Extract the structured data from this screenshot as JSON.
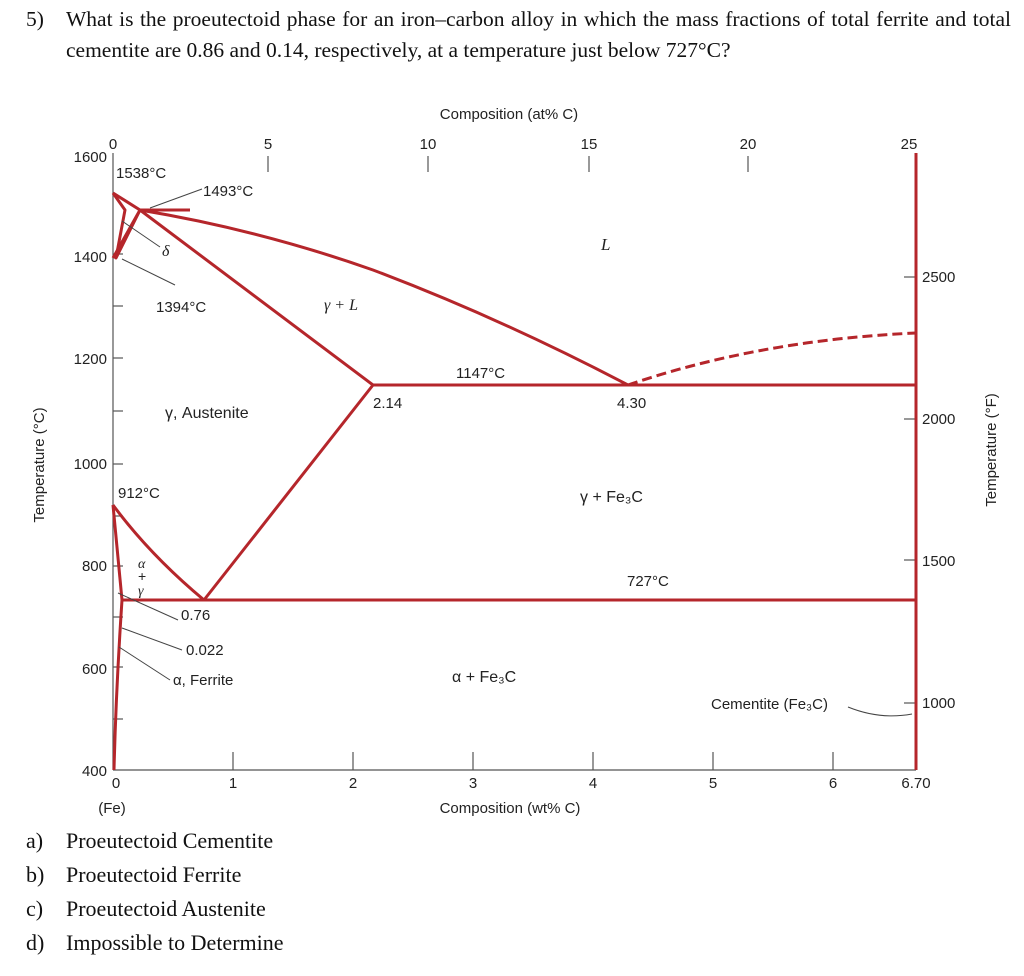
{
  "question": {
    "number": "5)",
    "text": "What is the proeutectoid phase for an iron–carbon alloy in which the mass fractions of total ferrite and total cementite are 0.86 and 0.14, respectively, at a temperature just below 727°C?"
  },
  "diagram": {
    "top_axis_label": "Composition (at% C)",
    "top_ticks": [
      "0",
      "5",
      "10",
      "15",
      "20",
      "25"
    ],
    "bottom_axis_label": "Composition (wt% C)",
    "bottom_ticks": [
      "0",
      "1",
      "2",
      "3",
      "4",
      "5",
      "6",
      "6.70"
    ],
    "bottom_origin_note": "(Fe)",
    "left_axis_label": "Temperature (°C)",
    "left_ticks": [
      "1600",
      "1400",
      "1200",
      "1000",
      "800",
      "600",
      "400"
    ],
    "right_axis_label": "Temperature (°F)",
    "right_ticks": [
      "2500",
      "2000",
      "1500",
      "1000"
    ],
    "labels": {
      "t1538": "1538°C",
      "t1493": "1493°C",
      "delta": "δ",
      "t1394": "1394°C",
      "gamma_liquid": "γ + L",
      "liquid": "L",
      "t1147": "1147°C",
      "c214": "2.14",
      "c430": "4.30",
      "austenite": "γ, Austenite",
      "t912": "912°C",
      "gamma_fe3c": "γ + Fe₃C",
      "alpha_sym": "α",
      "plus_sym": "+",
      "gamma_sym": "γ",
      "t727": "727°C",
      "c076": "0.76",
      "c0022": "0.022",
      "ferrite": "α, Ferrite",
      "alpha_fe3c": "α + Fe₃C",
      "cementite": "Cementite (Fe₃C)"
    },
    "line_color": "#b5262b"
  },
  "options": [
    {
      "letter": "a)",
      "text": "Proeutectoid Cementite"
    },
    {
      "letter": "b)",
      "text": "Proeutectoid Ferrite"
    },
    {
      "letter": "c)",
      "text": "Proeutectoid Austenite"
    },
    {
      "letter": "d)",
      "text": "Impossible to Determine"
    }
  ]
}
